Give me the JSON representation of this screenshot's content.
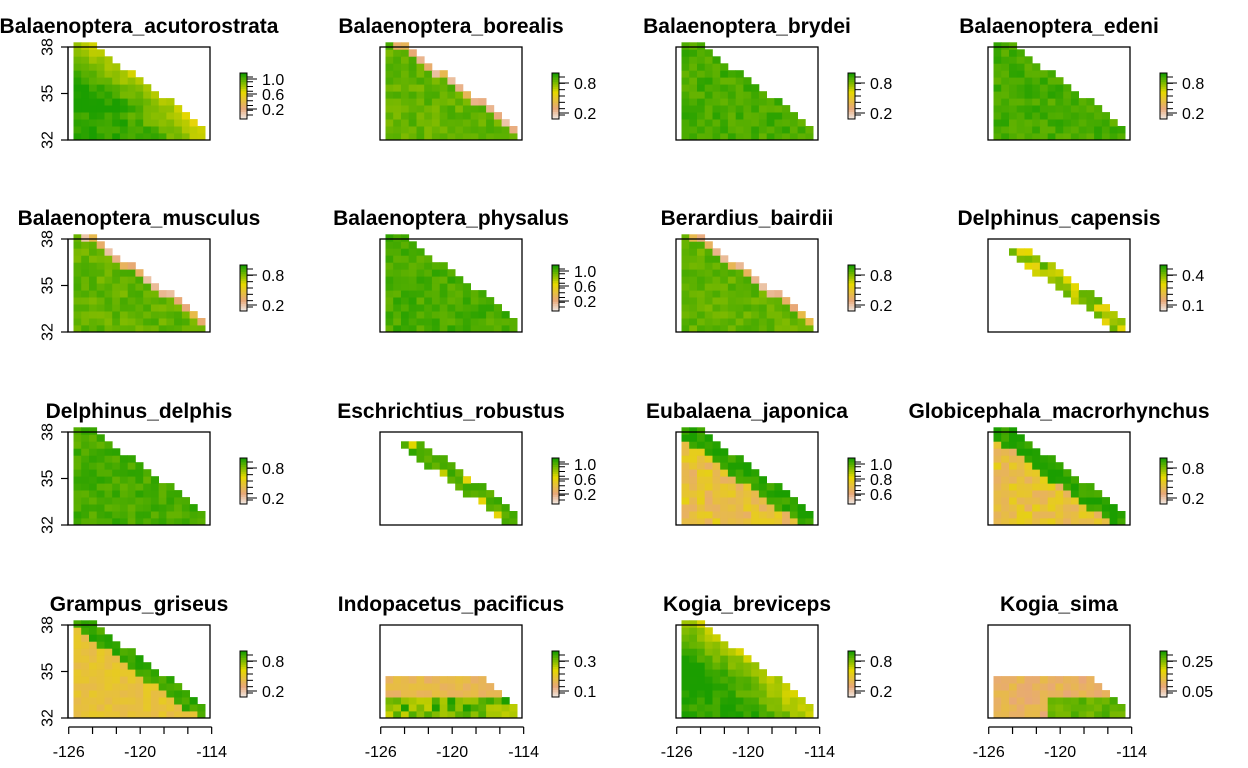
{
  "chart_data": {
    "type": "heatmap",
    "colors": {
      "high": "#1b9e00",
      "mid": "#e6d800",
      "low": "#e8a878",
      "lowest": "#f0f0f0"
    },
    "x_axis": {
      "ticks": [
        -126,
        -120,
        -114
      ]
    },
    "y_axis": {
      "ticks": [
        32,
        35,
        38
      ]
    },
    "panels": [
      {
        "title": "Balaenoptera_acutorostrata",
        "legend_ticks": [
          "1.0",
          "0.6",
          "0.2"
        ],
        "legend_values": [
          1.0,
          0.6,
          0.2
        ],
        "mode": "inshore_yellow"
      },
      {
        "title": "Balaenoptera_borealis",
        "legend_ticks": [
          "0.8",
          "0.2"
        ],
        "legend_values": [
          0.8,
          0.2
        ],
        "mode": "edge_pale"
      },
      {
        "title": "Balaenoptera_brydei",
        "legend_ticks": [
          "0.8",
          "0.2"
        ],
        "legend_values": [
          0.8,
          0.2
        ],
        "mode": "mostly_green"
      },
      {
        "title": "Balaenoptera_edeni",
        "legend_ticks": [
          "0.8",
          "0.2"
        ],
        "legend_values": [
          0.8,
          0.2
        ],
        "mode": "mostly_green"
      },
      {
        "title": "Balaenoptera_musculus",
        "legend_ticks": [
          "0.8",
          "0.2"
        ],
        "legend_values": [
          0.8,
          0.2
        ],
        "mode": "edge_pale"
      },
      {
        "title": "Balaenoptera_physalus",
        "legend_ticks": [
          "1.0",
          "0.6",
          "0.2"
        ],
        "legend_values": [
          1.0,
          0.6,
          0.2
        ],
        "mode": "mostly_green"
      },
      {
        "title": "Berardius_bairdii",
        "legend_ticks": [
          "0.8",
          "0.2"
        ],
        "legend_values": [
          0.8,
          0.2
        ],
        "mode": "edge_pale"
      },
      {
        "title": "Delphinus_capensis",
        "legend_ticks": [
          "0.4",
          "0.1"
        ],
        "legend_values": [
          0.4,
          0.1
        ],
        "mode": "coastal_strip"
      },
      {
        "title": "Delphinus_delphis",
        "legend_ticks": [
          "0.8",
          "0.2"
        ],
        "legend_values": [
          0.8,
          0.2
        ],
        "mode": "mostly_green"
      },
      {
        "title": "Eschrichtius_robustus",
        "legend_ticks": [
          "1.0",
          "0.6",
          "0.2"
        ],
        "legend_values": [
          1.0,
          0.6,
          0.2
        ],
        "mode": "coastal_strip_green"
      },
      {
        "title": "Eubalaena_japonica",
        "legend_ticks": [
          "1.0",
          "0.8",
          "0.6"
        ],
        "legend_values": [
          1.0,
          0.8,
          0.6
        ],
        "mode": "offshore_low"
      },
      {
        "title": "Globicephala_macrorhynchus",
        "legend_ticks": [
          "0.8",
          "0.2"
        ],
        "legend_values": [
          0.8,
          0.2
        ],
        "mode": "offshore_low"
      },
      {
        "title": "Grampus_griseus",
        "legend_ticks": [
          "0.8",
          "0.2"
        ],
        "legend_values": [
          0.8,
          0.2
        ],
        "mode": "offshore_tan"
      },
      {
        "title": "Indopacetus_pacificus",
        "legend_ticks": [
          "0.3",
          "0.1"
        ],
        "legend_values": [
          0.3,
          0.1
        ],
        "mode": "south_band"
      },
      {
        "title": "Kogia_breviceps",
        "legend_ticks": [
          "0.8",
          "0.2"
        ],
        "legend_values": [
          0.8,
          0.2
        ],
        "mode": "inshore_yellow"
      },
      {
        "title": "Kogia_sima",
        "legend_ticks": [
          "0.25",
          "0.05"
        ],
        "legend_values": [
          0.25,
          0.05
        ],
        "mode": "south_band_low"
      }
    ]
  }
}
